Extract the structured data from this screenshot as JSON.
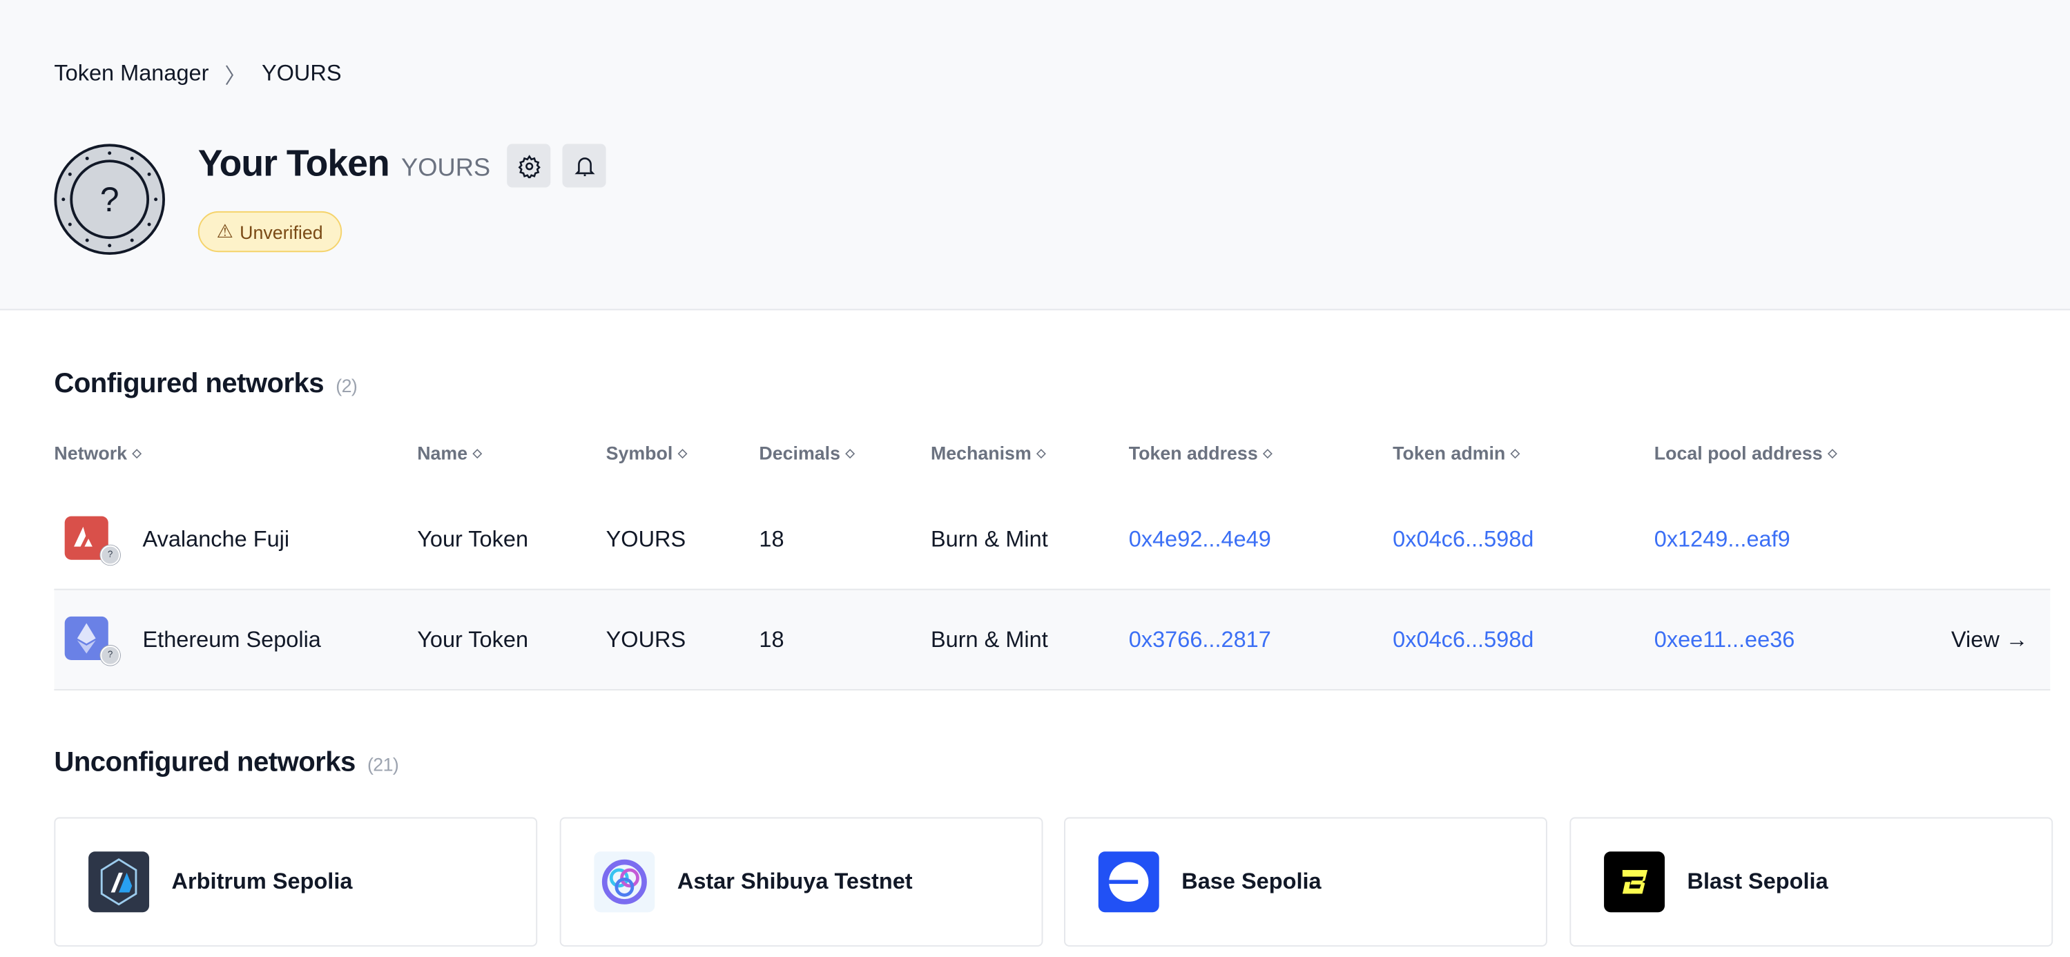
{
  "breadcrumb": {
    "parent": "Token Manager",
    "current": "YOURS"
  },
  "token": {
    "name": "Your Token",
    "symbol": "YOURS",
    "status": "Unverified"
  },
  "configured": {
    "title": "Configured networks",
    "count": "(2)",
    "columns": [
      "Network",
      "Name",
      "Symbol",
      "Decimals",
      "Mechanism",
      "Token address",
      "Token admin",
      "Local pool address"
    ],
    "rows": [
      {
        "network": "Avalanche Fuji",
        "name": "Your Token",
        "symbol": "YOURS",
        "decimals": "18",
        "mechanism": "Burn & Mint",
        "token_address": "0x4e92...4e49",
        "token_admin": "0x04c6...598d",
        "pool_address": "0x1249...eaf9"
      },
      {
        "network": "Ethereum Sepolia",
        "name": "Your Token",
        "symbol": "YOURS",
        "decimals": "18",
        "mechanism": "Burn & Mint",
        "token_address": "0x3766...2817",
        "token_admin": "0x04c6...598d",
        "pool_address": "0xee11...ee36",
        "action": "View →"
      }
    ]
  },
  "unconfigured": {
    "title": "Unconfigured networks",
    "count": "(21)",
    "networks": [
      "Arbitrum Sepolia",
      "Astar Shibuya Testnet",
      "Base Sepolia",
      "Blast Sepolia"
    ]
  },
  "colors": {
    "link": "#3b6ff5",
    "avalanche": "#d9504a",
    "ethereum": "#6a81e6",
    "base": "#2151f5",
    "blast": "#000000",
    "blast_accent": "#fcfc4f",
    "arbitrum": "#2d3648"
  }
}
